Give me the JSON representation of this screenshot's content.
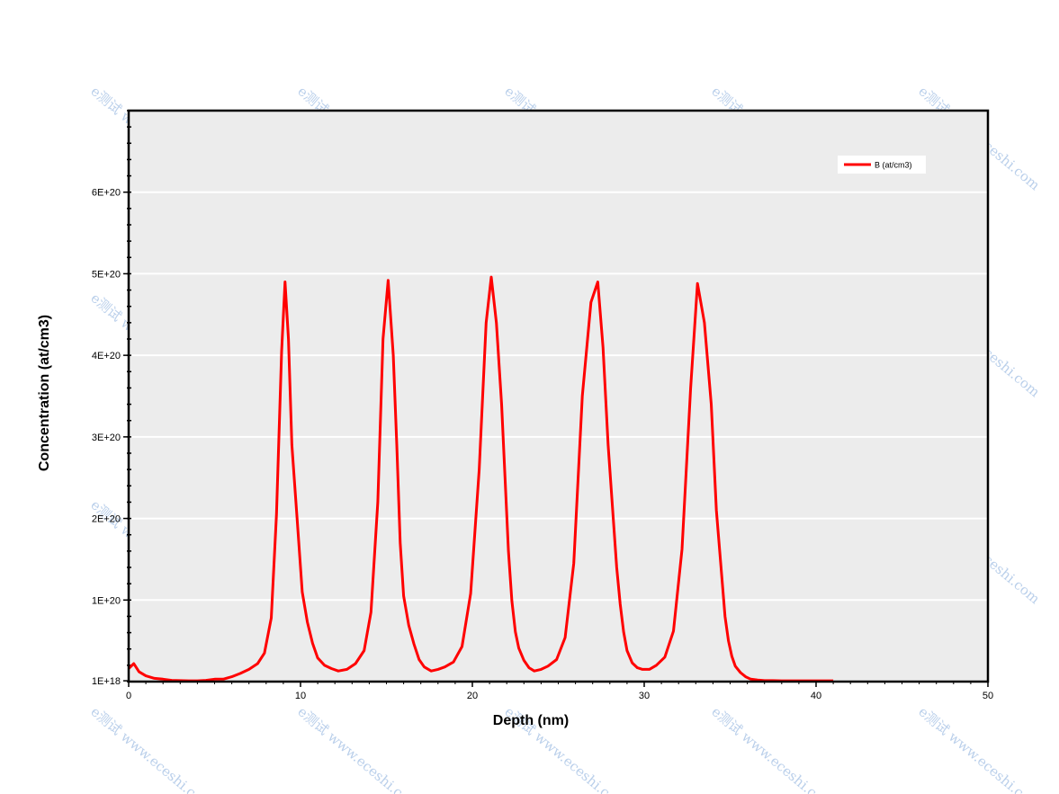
{
  "chart_data": {
    "type": "line",
    "xlabel": "Depth (nm)",
    "ylabel": "Concentration (at/cm3)",
    "xlim": [
      0,
      50
    ],
    "ylim": [
      1e+18,
      7e+20
    ],
    "x_ticks": [
      0,
      10,
      20,
      30,
      40,
      50
    ],
    "x_tick_labels": [
      "0",
      "10",
      "20",
      "30",
      "40",
      "50"
    ],
    "y_ticks": [
      1e+18,
      1e+20,
      2e+20,
      3e+20,
      4e+20,
      5e+20,
      6e+20
    ],
    "y_tick_labels": [
      "1E+18",
      "1E+20",
      "2E+20",
      "3E+20",
      "4E+20",
      "5E+20",
      "6E+20"
    ],
    "grid": "horizontal",
    "legend": "top-right",
    "colors": {
      "plot_bg": "#ececec",
      "series": "#ff0000",
      "grid": "#ffffff"
    },
    "series": [
      {
        "name": "B (at/cm3)",
        "x": [
          0,
          0.3,
          0.6,
          1.0,
          1.5,
          2.0,
          2.5,
          3.0,
          3.5,
          4.0,
          4.5,
          5.0,
          5.5,
          6.0,
          6.5,
          7.0,
          7.5,
          7.9,
          8.3,
          8.6,
          8.9,
          9.1,
          9.3,
          9.5,
          9.8,
          10.1,
          10.4,
          10.7,
          11.0,
          11.4,
          11.8,
          12.2,
          12.7,
          13.2,
          13.7,
          14.1,
          14.5,
          14.8,
          15.1,
          15.4,
          15.6,
          15.8,
          16.0,
          16.3,
          16.6,
          16.9,
          17.2,
          17.6,
          18.0,
          18.4,
          18.9,
          19.4,
          19.9,
          20.4,
          20.8,
          21.1,
          21.4,
          21.7,
          21.9,
          22.1,
          22.3,
          22.5,
          22.7,
          23.0,
          23.3,
          23.6,
          24.0,
          24.4,
          24.9,
          25.4,
          25.9,
          26.4,
          26.9,
          27.3,
          27.6,
          27.9,
          28.2,
          28.4,
          28.6,
          28.8,
          29.0,
          29.3,
          29.6,
          29.9,
          30.3,
          30.7,
          31.2,
          31.7,
          32.2,
          32.7,
          33.1,
          33.5,
          33.9,
          34.2,
          34.5,
          34.7,
          34.9,
          35.1,
          35.3,
          35.6,
          35.9,
          36.2,
          36.6,
          37.0,
          37.5,
          38.0,
          38.5,
          39.0,
          39.5,
          40.0,
          40.5,
          41.0
        ],
        "values": [
          1.6e+19,
          2.2e+19,
          1.2e+19,
          7e+18,
          4e+18,
          3e+18,
          1.5e+18,
          1.2e+18,
          1e+18,
          1e+18,
          1.5e+18,
          3e+18,
          3e+18,
          6e+18,
          1e+19,
          1.5e+19,
          2.2e+19,
          3.5e+19,
          7.8e+19,
          2.05e+20,
          4.05e+20,
          4.9e+20,
          4.2e+20,
          2.9e+20,
          2e+20,
          1.1e+20,
          7.3e+19,
          4.7e+19,
          2.9e+19,
          2e+19,
          1.6e+19,
          1.3e+19,
          1.5e+19,
          2.2e+19,
          3.8e+19,
          8.5e+19,
          2.2e+20,
          4.2e+20,
          4.92e+20,
          4e+20,
          2.9e+20,
          1.7e+20,
          1.05e+20,
          6.9e+19,
          4.6e+19,
          2.7e+19,
          1.8e+19,
          1.3e+19,
          1.5e+19,
          1.8e+19,
          2.4e+19,
          4.3e+19,
          1.08e+20,
          2.6e+20,
          4.4e+20,
          4.96e+20,
          4.4e+20,
          3.4e+20,
          2.5e+20,
          1.6e+20,
          9.9e+19,
          6.1e+19,
          4.1e+19,
          2.6e+19,
          1.7e+19,
          1.3e+19,
          1.5e+19,
          1.9e+19,
          2.7e+19,
          5.4e+19,
          1.45e+20,
          3.5e+20,
          4.65e+20,
          4.9e+20,
          4.1e+20,
          2.9e+20,
          2e+20,
          1.4e+20,
          9.5e+19,
          6.1e+19,
          3.8e+19,
          2.3e+19,
          1.7e+19,
          1.5e+19,
          1.5e+19,
          2e+19,
          3e+19,
          6.2e+19,
          1.62e+20,
          3.6e+20,
          4.88e+20,
          4.4e+20,
          3.4e+20,
          2.1e+20,
          1.33e+20,
          8e+19,
          5e+19,
          3.1e+19,
          1.9e+19,
          1.1e+19,
          6e+18,
          3e+18,
          2e+18,
          1.2e+18,
          1.2e+18,
          1e+18,
          1e+18,
          1e+18,
          1e+18,
          1e+18,
          1e+18,
          1e+18
        ]
      }
    ]
  },
  "watermark": "e测试 www.eceshi.com"
}
